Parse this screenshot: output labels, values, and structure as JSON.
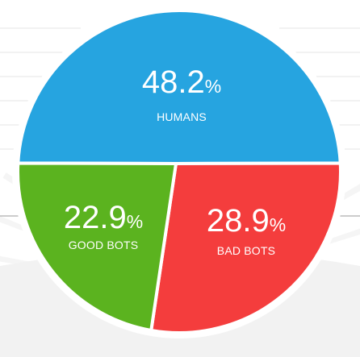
{
  "colors": {
    "humans": "#26a4e0",
    "good_bots": "#5bb31f",
    "bad_bots": "#f43d3d",
    "border": "#ffffff",
    "background_rays": "#ececec",
    "guide_lines": "#d8d8d8"
  },
  "chart_data": {
    "type": "pie",
    "slices": [
      {
        "key": "humans",
        "label": "HUMANS",
        "value": 48.2,
        "value_text": "48.2",
        "unit": "%"
      },
      {
        "key": "bad_bots",
        "label": "BAD BOTS",
        "value": 28.9,
        "value_text": "28.9",
        "unit": "%"
      },
      {
        "key": "good_bots",
        "label": "GOOD BOTS",
        "value": 22.9,
        "value_text": "22.9",
        "unit": "%"
      }
    ]
  }
}
